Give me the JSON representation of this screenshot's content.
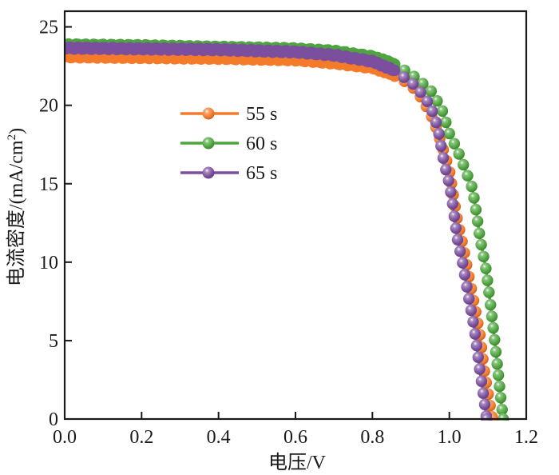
{
  "chart_data": {
    "type": "line",
    "title": "",
    "xlabel": "电压/V",
    "ylabel_main": "电流密度/(mA/cm",
    "ylabel_sup": "2",
    "ylabel_close": ")",
    "xlim": [
      0.0,
      1.2
    ],
    "ylim": [
      0,
      26
    ],
    "x_ticks": [
      0.0,
      0.2,
      0.4,
      0.6,
      0.8,
      1.0,
      1.2
    ],
    "x_tick_labels": [
      "0.0",
      "0.2",
      "0.4",
      "0.6",
      "0.8",
      "1.0",
      "1.2"
    ],
    "y_ticks": [
      0,
      5,
      10,
      15,
      20,
      25
    ],
    "y_tick_labels": [
      "0",
      "5",
      "10",
      "15",
      "20",
      "25"
    ],
    "grid": false,
    "legend_position": "upper-left-center",
    "series": [
      {
        "name": "55 s",
        "color": "#F47B2A",
        "jsc": 23.0,
        "voc": 1.112,
        "points": [
          [
            0.0,
            23.1
          ],
          [
            0.2,
            23.05
          ],
          [
            0.4,
            23.0
          ],
          [
            0.6,
            22.9
          ],
          [
            0.7,
            22.7
          ],
          [
            0.8,
            22.4
          ],
          [
            0.85,
            22.0
          ],
          [
            0.9,
            21.3
          ],
          [
            0.93,
            20.4
          ],
          [
            0.96,
            19.0
          ],
          [
            0.98,
            17.5
          ],
          [
            1.0,
            15.9
          ],
          [
            1.01,
            14.3
          ],
          [
            1.02,
            12.8
          ],
          [
            1.035,
            11.1
          ],
          [
            1.05,
            9.2
          ],
          [
            1.065,
            7.3
          ],
          [
            1.08,
            5.3
          ],
          [
            1.09,
            3.2
          ],
          [
            1.105,
            1.0
          ],
          [
            1.112,
            0.0
          ]
        ]
      },
      {
        "name": "60 s",
        "color": "#4EA53F",
        "jsc": 23.8,
        "voc": 1.14,
        "points": [
          [
            0.0,
            23.85
          ],
          [
            0.2,
            23.8
          ],
          [
            0.4,
            23.7
          ],
          [
            0.6,
            23.6
          ],
          [
            0.7,
            23.45
          ],
          [
            0.8,
            23.1
          ],
          [
            0.85,
            22.7
          ],
          [
            0.9,
            22.0
          ],
          [
            0.95,
            21.0
          ],
          [
            0.98,
            19.8
          ],
          [
            1.0,
            18.2
          ],
          [
            1.02,
            17.2
          ],
          [
            1.04,
            16.0
          ],
          [
            1.06,
            14.7
          ],
          [
            1.07,
            13.2
          ],
          [
            1.08,
            11.5
          ],
          [
            1.095,
            9.6
          ],
          [
            1.105,
            7.7
          ],
          [
            1.115,
            5.6
          ],
          [
            1.125,
            3.4
          ],
          [
            1.135,
            1.0
          ],
          [
            1.14,
            0.0
          ]
        ]
      },
      {
        "name": "65 s",
        "color": "#7B4F9E",
        "jsc": 23.6,
        "voc": 1.097,
        "points": [
          [
            0.0,
            23.65
          ],
          [
            0.2,
            23.6
          ],
          [
            0.4,
            23.55
          ],
          [
            0.6,
            23.4
          ],
          [
            0.7,
            23.2
          ],
          [
            0.8,
            22.8
          ],
          [
            0.85,
            22.3
          ],
          [
            0.9,
            21.5
          ],
          [
            0.92,
            21.0
          ],
          [
            0.95,
            20.0
          ],
          [
            0.97,
            18.6
          ],
          [
            0.985,
            16.5
          ],
          [
            1.0,
            15.0
          ],
          [
            1.01,
            13.5
          ],
          [
            1.02,
            11.6
          ],
          [
            1.035,
            9.9
          ],
          [
            1.05,
            7.8
          ],
          [
            1.065,
            5.8
          ],
          [
            1.08,
            3.0
          ],
          [
            1.09,
            1.3
          ],
          [
            1.097,
            0.0
          ]
        ]
      }
    ]
  }
}
